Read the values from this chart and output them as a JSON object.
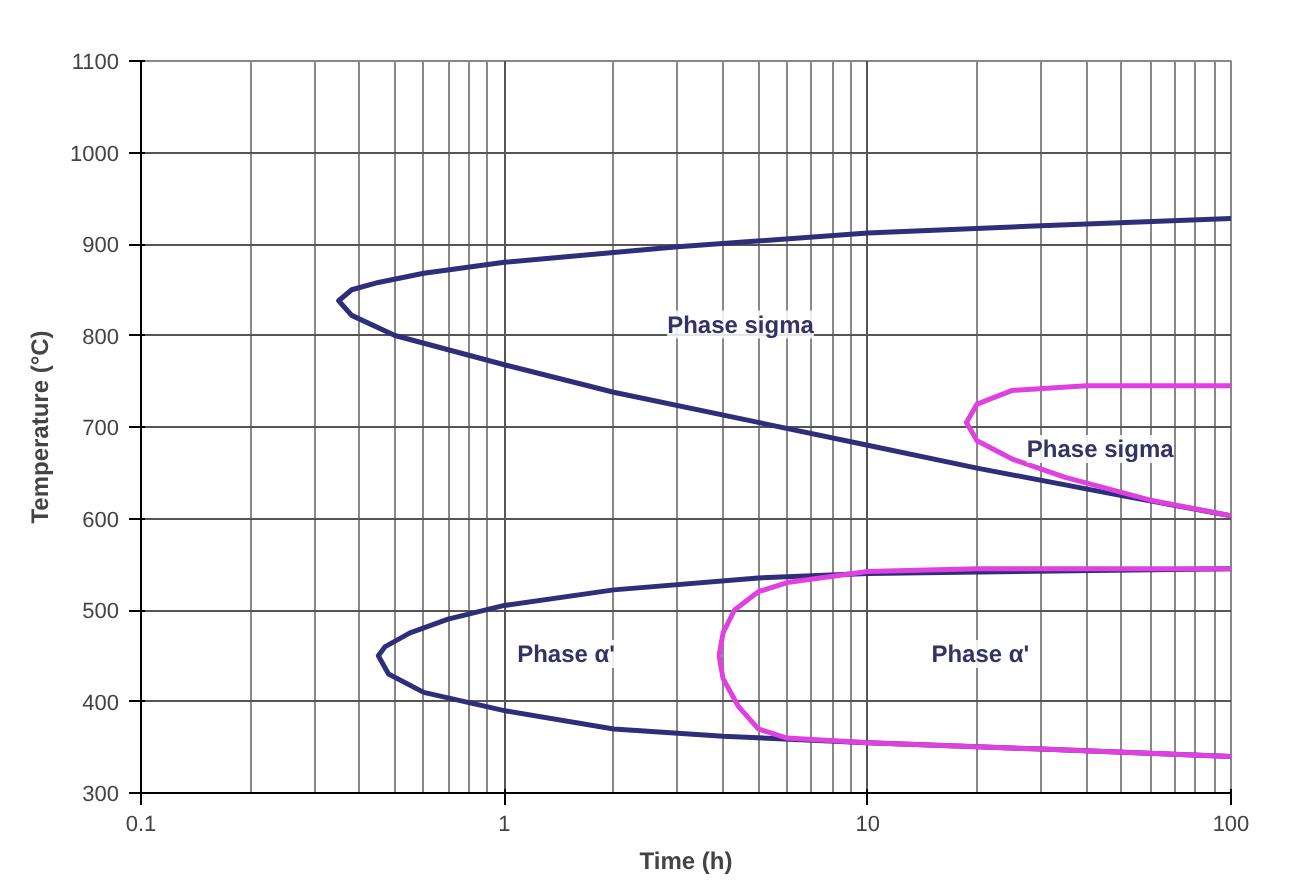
{
  "chart_data": {
    "type": "line",
    "xlabel": "Time (h)",
    "ylabel": "Temperature (°C)",
    "log": "x",
    "xlim": [
      0.1,
      100
    ],
    "ylim": [
      300,
      1100
    ],
    "xticks": [
      0.1,
      1,
      10,
      100
    ],
    "yticks": [
      300,
      400,
      500,
      600,
      700,
      800,
      900,
      1000,
      1100
    ],
    "grid": true,
    "marker": "none",
    "line_style": "solid",
    "series": [
      {
        "color": "#2e2e7a",
        "x": [
          100,
          30,
          10,
          3,
          1,
          0.6,
          0.45,
          0.38,
          0.35,
          0.38,
          0.5,
          1,
          2,
          5,
          10,
          20,
          50,
          100
        ],
        "values": [
          928,
          920,
          912,
          897,
          880,
          868,
          858,
          850,
          838,
          822,
          800,
          768,
          738,
          705,
          680,
          655,
          625,
          603
        ]
      },
      {
        "color": "#2e2e7a",
        "x": [
          100,
          10,
          5,
          2,
          1,
          0.7,
          0.55,
          0.47,
          0.45,
          0.48,
          0.6,
          1,
          2,
          4,
          10,
          30,
          100
        ],
        "values": [
          545,
          540,
          535,
          522,
          505,
          490,
          475,
          460,
          450,
          430,
          410,
          390,
          370,
          362,
          355,
          348,
          340
        ]
      },
      {
        "color": "#e040e0",
        "x": [
          100,
          20,
          10,
          6,
          5,
          4.3,
          4,
          3.9,
          4,
          4.4,
          5,
          6,
          10,
          30,
          100
        ],
        "values": [
          545,
          545,
          542,
          530,
          520,
          500,
          475,
          450,
          425,
          395,
          370,
          360,
          355,
          348,
          340
        ]
      },
      {
        "color": "#e040e0",
        "x": [
          100,
          40,
          25,
          20,
          18.7,
          20,
          25,
          35,
          60,
          100
        ],
        "values": [
          745,
          745,
          740,
          725,
          705,
          685,
          665,
          645,
          620,
          603
        ]
      }
    ],
    "annotations": [
      "Phase sigma",
      "Phase α'",
      "Phase sigma",
      "Phase α'"
    ]
  }
}
